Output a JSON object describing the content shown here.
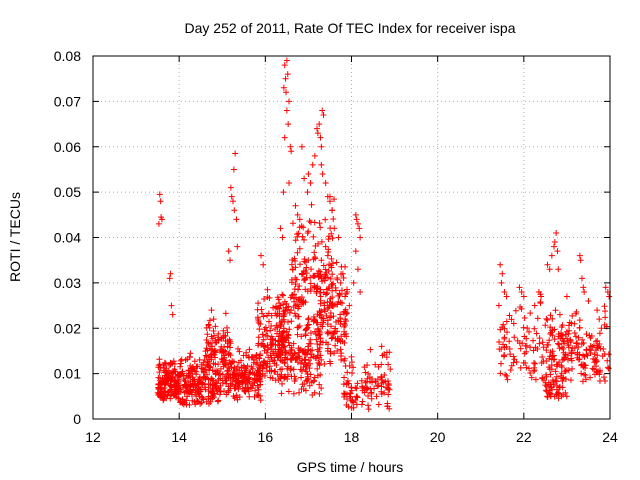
{
  "chart_data": {
    "type": "scatter",
    "title": "Day 252 of 2011, Rate Of TEC Index for receiver ispa",
    "xlabel": "GPS time / hours",
    "ylabel": "ROTI / TECUs",
    "xlim": [
      12,
      24
    ],
    "ylim": [
      0,
      0.08
    ],
    "grid": true,
    "marker": "plus",
    "color": "#ff0000",
    "x_ticks": [
      "12",
      "14",
      "16",
      "18",
      "20",
      "22",
      "24"
    ],
    "y_ticks": [
      "0",
      "0.01",
      "0.02",
      "0.03",
      "0.04",
      "0.05",
      "0.06",
      "0.07",
      "0.08"
    ],
    "clusters": [
      {
        "x": [
          13.5,
          14.0
        ],
        "y": [
          0.004,
          0.014
        ],
        "n": 160
      },
      {
        "x": [
          14.0,
          15.0
        ],
        "y": [
          0.003,
          0.016
        ],
        "n": 230
      },
      {
        "x": [
          14.6,
          15.2
        ],
        "y": [
          0.012,
          0.024
        ],
        "n": 70
      },
      {
        "x": [
          15.0,
          15.9
        ],
        "y": [
          0.004,
          0.018
        ],
        "n": 190
      },
      {
        "x": [
          15.8,
          16.5
        ],
        "y": [
          0.008,
          0.03
        ],
        "n": 170
      },
      {
        "x": [
          16.3,
          17.3
        ],
        "y": [
          0.005,
          0.03
        ],
        "n": 200
      },
      {
        "x": [
          16.6,
          17.6
        ],
        "y": [
          0.02,
          0.05
        ],
        "n": 160
      },
      {
        "x": [
          17.2,
          17.9
        ],
        "y": [
          0.01,
          0.035
        ],
        "n": 120
      },
      {
        "x": [
          17.8,
          18.9
        ],
        "y": [
          0.002,
          0.016
        ],
        "n": 110
      },
      {
        "x": [
          21.4,
          22.6
        ],
        "y": [
          0.008,
          0.028
        ],
        "n": 100
      },
      {
        "x": [
          22.5,
          23.0
        ],
        "y": [
          0.004,
          0.012
        ],
        "n": 50
      },
      {
        "x": [
          22.6,
          24.0
        ],
        "y": [
          0.008,
          0.026
        ],
        "n": 180
      }
    ],
    "points": [
      [
        13.55,
        0.0495
      ],
      [
        13.57,
        0.048
      ],
      [
        13.6,
        0.044
      ],
      [
        13.53,
        0.043
      ],
      [
        13.58,
        0.0445
      ],
      [
        13.8,
        0.032
      ],
      [
        13.78,
        0.031
      ],
      [
        13.82,
        0.025
      ],
      [
        13.85,
        0.023
      ],
      [
        14.75,
        0.024
      ],
      [
        14.8,
        0.022
      ],
      [
        15.2,
        0.051
      ],
      [
        15.22,
        0.049
      ],
      [
        15.25,
        0.048
      ],
      [
        15.28,
        0.046
      ],
      [
        15.3,
        0.0585
      ],
      [
        15.27,
        0.055
      ],
      [
        15.15,
        0.037
      ],
      [
        15.18,
        0.035
      ],
      [
        15.35,
        0.038
      ],
      [
        15.33,
        0.044
      ],
      [
        15.9,
        0.036
      ],
      [
        15.95,
        0.034
      ],
      [
        16.45,
        0.078
      ],
      [
        16.47,
        0.075
      ],
      [
        16.5,
        0.079
      ],
      [
        16.52,
        0.076
      ],
      [
        16.43,
        0.073
      ],
      [
        16.48,
        0.072
      ],
      [
        16.55,
        0.07
      ],
      [
        16.5,
        0.068
      ],
      [
        16.53,
        0.065
      ],
      [
        16.58,
        0.06
      ],
      [
        16.6,
        0.059
      ],
      [
        16.45,
        0.062
      ],
      [
        16.42,
        0.05
      ],
      [
        16.55,
        0.052
      ],
      [
        16.35,
        0.042
      ],
      [
        16.4,
        0.04
      ],
      [
        16.7,
        0.047
      ],
      [
        16.75,
        0.045
      ],
      [
        16.8,
        0.044
      ],
      [
        16.85,
        0.06
      ],
      [
        16.9,
        0.053
      ],
      [
        17.0,
        0.054
      ],
      [
        17.05,
        0.052
      ],
      [
        17.1,
        0.056
      ],
      [
        17.15,
        0.058
      ],
      [
        17.2,
        0.064
      ],
      [
        17.22,
        0.063
      ],
      [
        17.25,
        0.065
      ],
      [
        17.28,
        0.062
      ],
      [
        17.3,
        0.06
      ],
      [
        17.32,
        0.068
      ],
      [
        17.35,
        0.067
      ],
      [
        17.3,
        0.056
      ],
      [
        17.33,
        0.054
      ],
      [
        17.4,
        0.052
      ],
      [
        17.45,
        0.049
      ],
      [
        17.5,
        0.048
      ],
      [
        17.55,
        0.046
      ],
      [
        17.6,
        0.042
      ],
      [
        17.4,
        0.038
      ],
      [
        17.45,
        0.036
      ],
      [
        17.3,
        0.035
      ],
      [
        17.7,
        0.04
      ],
      [
        17.75,
        0.03
      ],
      [
        17.8,
        0.032
      ],
      [
        17.85,
        0.027
      ],
      [
        17.9,
        0.028
      ],
      [
        17.95,
        0.025
      ],
      [
        18.1,
        0.045
      ],
      [
        18.12,
        0.044
      ],
      [
        18.15,
        0.043
      ],
      [
        18.18,
        0.042
      ],
      [
        18.2,
        0.04
      ],
      [
        18.1,
        0.037
      ],
      [
        18.15,
        0.033
      ],
      [
        18.05,
        0.03
      ],
      [
        18.2,
        0.028
      ],
      [
        17.5,
        0.049
      ],
      [
        17.55,
        0.046
      ],
      [
        16.98,
        0.05
      ],
      [
        18.7,
        0.016
      ],
      [
        18.72,
        0.014
      ],
      [
        18.9,
        0.011
      ],
      [
        18.85,
        0.012
      ],
      [
        21.45,
        0.034
      ],
      [
        21.5,
        0.032
      ],
      [
        21.48,
        0.03
      ],
      [
        21.55,
        0.028
      ],
      [
        21.6,
        0.027
      ],
      [
        21.9,
        0.029
      ],
      [
        21.95,
        0.028
      ],
      [
        22.0,
        0.027
      ],
      [
        22.55,
        0.034
      ],
      [
        22.6,
        0.033
      ],
      [
        22.65,
        0.036
      ],
      [
        22.7,
        0.038
      ],
      [
        22.72,
        0.039
      ],
      [
        22.75,
        0.041
      ],
      [
        22.78,
        0.037
      ],
      [
        22.8,
        0.033
      ],
      [
        22.35,
        0.028
      ],
      [
        22.4,
        0.027
      ],
      [
        23.0,
        0.027
      ],
      [
        23.3,
        0.036
      ],
      [
        23.32,
        0.035
      ],
      [
        23.35,
        0.031
      ],
      [
        23.38,
        0.029
      ],
      [
        23.4,
        0.028
      ],
      [
        23.5,
        0.026
      ],
      [
        23.9,
        0.029
      ],
      [
        23.95,
        0.028
      ],
      [
        23.98,
        0.027
      ],
      [
        23.7,
        0.024
      ],
      [
        23.75,
        0.022
      ],
      [
        23.8,
        0.02
      ]
    ]
  }
}
